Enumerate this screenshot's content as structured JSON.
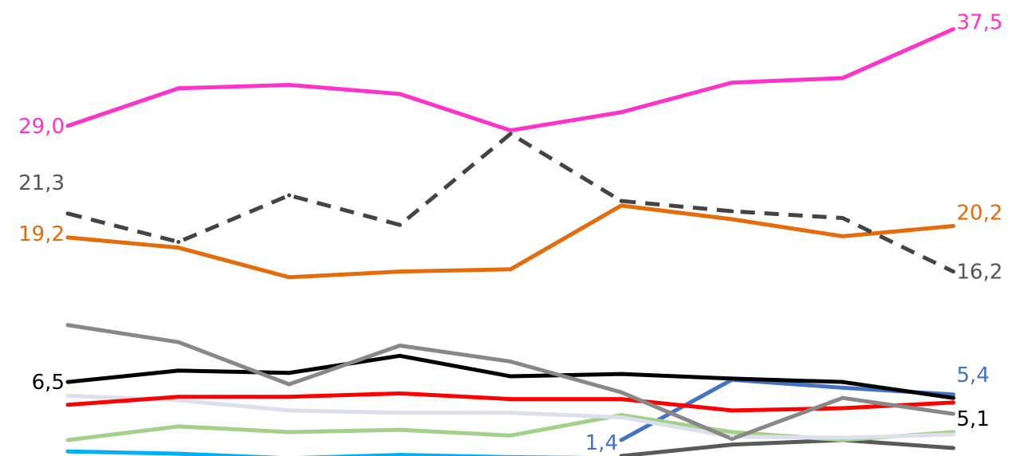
{
  "chart_data": {
    "type": "line",
    "title": "",
    "xlabel": "",
    "ylabel": "",
    "x": [
      1,
      2,
      3,
      4,
      5,
      6,
      7,
      8,
      9
    ],
    "grid": false,
    "legend": "none",
    "series": [
      {
        "color": "#ff33cc",
        "dash": false,
        "values": [
          29.0,
          32.3,
          32.6,
          31.8,
          28.6,
          30.2,
          32.8,
          33.2,
          37.5
        ],
        "labels": {
          "0": "29,0",
          "8": "37,5"
        }
      },
      {
        "color": "#444444",
        "dash": true,
        "values": [
          21.3,
          18.8,
          22.9,
          20.3,
          28.3,
          22.4,
          21.5,
          20.9,
          16.2
        ],
        "labels": {
          "0": "21,3",
          "8": "16,2"
        }
      },
      {
        "color": "#e46c0a",
        "dash": false,
        "values": [
          19.2,
          18.3,
          15.7,
          16.2,
          16.4,
          22.0,
          20.8,
          19.3,
          20.2
        ],
        "labels": {
          "0": "19,2",
          "8": "20,2"
        }
      },
      {
        "color": "#888888",
        "dash": false,
        "values": [
          11.5,
          10.0,
          6.3,
          9.7,
          8.3,
          5.6,
          1.5,
          5.1,
          3.7
        ],
        "labels": {}
      },
      {
        "color": "#000000",
        "dash": false,
        "values": [
          6.5,
          7.5,
          7.3,
          8.8,
          7.0,
          7.2,
          6.8,
          6.5,
          5.1
        ],
        "labels": {
          "0": "6,5",
          "8": "5,1"
        }
      },
      {
        "color": "#ff0000",
        "dash": false,
        "values": [
          4.5,
          5.2,
          5.2,
          5.5,
          5.0,
          5.0,
          4.0,
          4.2,
          4.7
        ],
        "labels": {}
      },
      {
        "color": "#dde0ec",
        "dash": false,
        "values": [
          5.3,
          4.9,
          4.0,
          3.8,
          3.8,
          3.4,
          1.7,
          1.6,
          1.9
        ],
        "labels": {}
      },
      {
        "color": "#a3d18a",
        "dash": false,
        "values": [
          1.4,
          2.6,
          2.1,
          2.3,
          1.8,
          3.6,
          2.1,
          1.4,
          2.1
        ],
        "labels": {}
      },
      {
        "color": "#00b0f0",
        "dash": false,
        "values": [
          0.4,
          0.2,
          -0.2,
          0.1,
          -0.1,
          -0.2,
          -0.8,
          -0.6,
          -0.5
        ],
        "labels": {}
      },
      {
        "color": "#4472c4",
        "dash": false,
        "values": [
          null,
          null,
          null,
          null,
          null,
          1.4,
          6.7,
          6.0,
          5.4
        ],
        "labels": {
          "5": "1,4",
          "8": "5,4"
        }
      },
      {
        "color": "#595959",
        "dash": false,
        "values": [
          null,
          null,
          null,
          null,
          null,
          0.0,
          1.0,
          1.4,
          0.7
        ],
        "labels": {}
      }
    ]
  }
}
